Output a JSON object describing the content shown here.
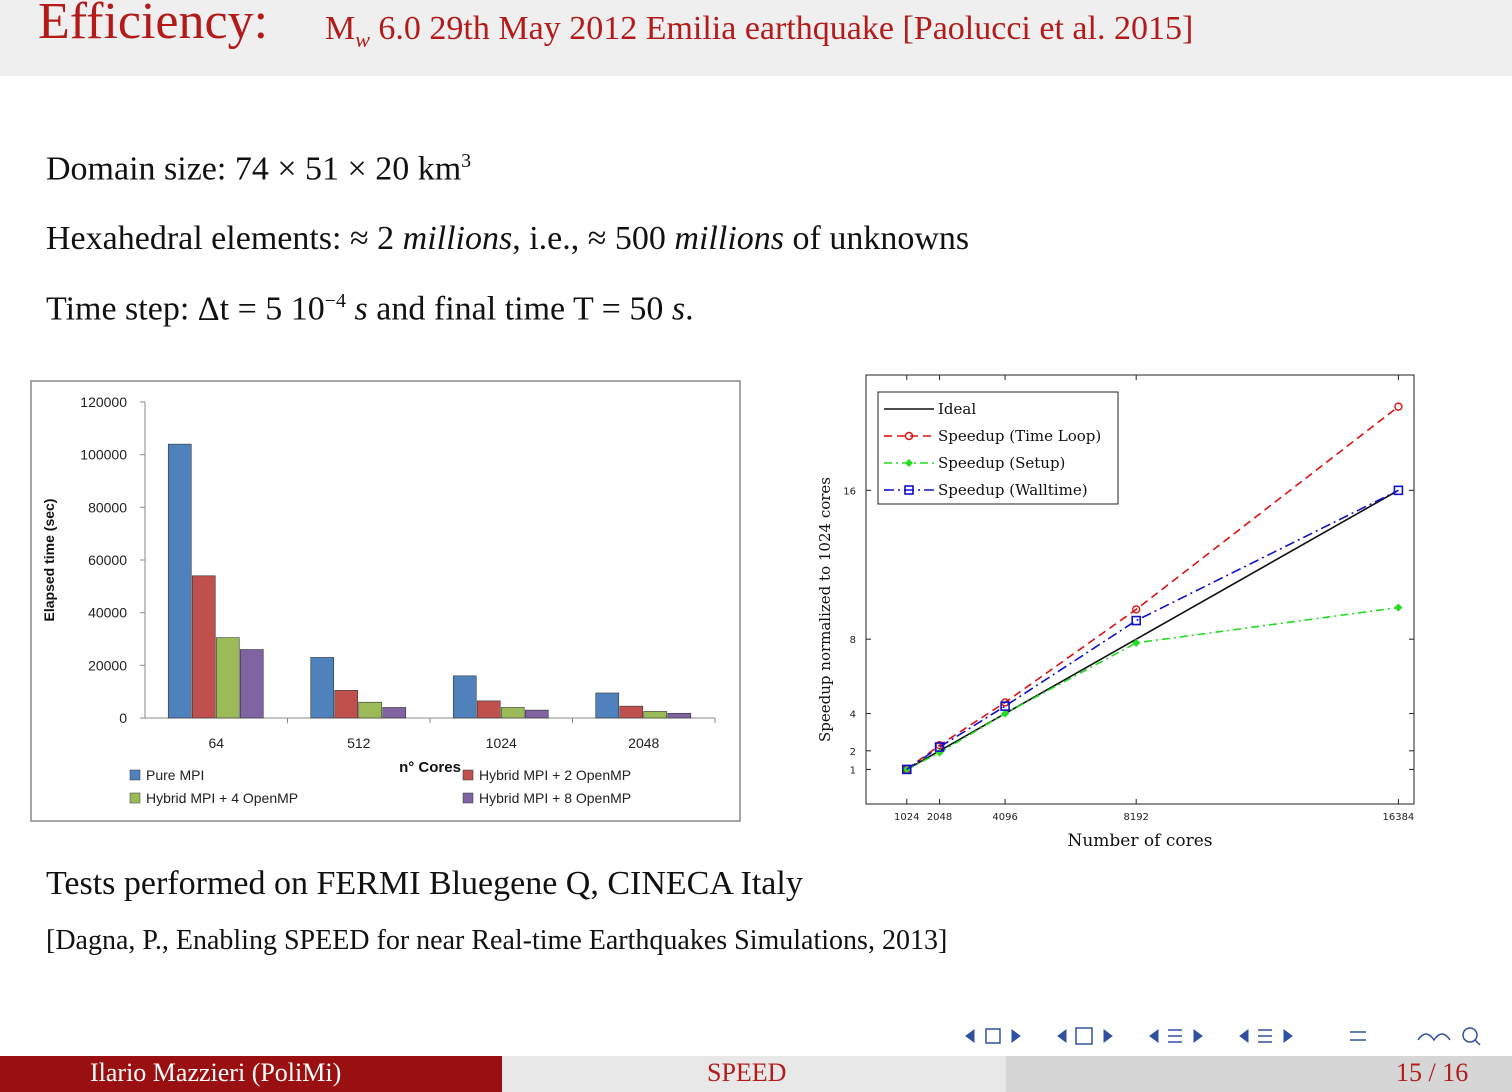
{
  "title": {
    "main": "Efficiency:",
    "sub": "M_w 6.0 29th May 2012 Emilia earthquake [Paolucci et al. 2015]"
  },
  "body": {
    "domain_label": "Domain size:",
    "domain_value": "74 × 51 × 20 km",
    "domain_exp": "3",
    "hexa_label": "Hexahedral elements: ≈ 2 ",
    "hexa_m1": "millions",
    "hexa_mid": ", i.e., ≈ 500 ",
    "hexa_m2": "millions",
    "hexa_end": " of unknowns",
    "time_label": "Time step: Δt = 5 10",
    "time_exp": "−4",
    "time_s1": "s",
    "time_mid": " and final time T = 50 ",
    "time_s2": "s",
    "time_end": ".",
    "tests": "Tests performed on FERMI Bluegene Q, CINECA Italy",
    "citation": "[Dagna, P., Enabling SPEED for near Real-time Earthquakes Simulations, 2013]"
  },
  "footer": {
    "author": "Ilario Mazzieri  (PoliMi)",
    "center": "SPEED",
    "page": "15 / 16"
  },
  "nav_icons": [
    "nav-frame-left",
    "nav-frame-right",
    "nav-subsection-left",
    "nav-subsection-right",
    "nav-section-left",
    "nav-section-right",
    "nav-align",
    "nav-search"
  ],
  "colors": {
    "title": "#b31b1b",
    "footer_left": "#9a1010",
    "pure_mpi": "#4f81bd",
    "hybrid2": "#c0504d",
    "hybrid4": "#9bbb59",
    "hybrid8": "#8064a2"
  },
  "chart_data": [
    {
      "type": "bar",
      "xlabel": "n° Cores",
      "ylabel": "Elapsed time (sec)",
      "categories": [
        "64",
        "512",
        "1024",
        "2048"
      ],
      "ylim": [
        0,
        120000
      ],
      "yticks": [
        "0",
        "20000",
        "40000",
        "60000",
        "80000",
        "100000",
        "120000"
      ],
      "series": [
        {
          "name": "Pure MPI",
          "values": [
            104000,
            23000,
            16000,
            9500
          ]
        },
        {
          "name": "Hybrid MPI + 2 OpenMP",
          "values": [
            54000,
            10500,
            6500,
            4500
          ]
        },
        {
          "name": "Hybrid MPI + 4 OpenMP",
          "values": [
            30500,
            6000,
            4000,
            2500
          ]
        },
        {
          "name": "Hybrid MPI + 8 OpenMP",
          "values": [
            26000,
            4000,
            3000,
            1800
          ]
        }
      ],
      "legend": "bottom",
      "grid": false
    },
    {
      "type": "line",
      "xlabel": "Number of cores",
      "ylabel": "Speedup normalized to 1024 cores",
      "x": [
        1024,
        2048,
        4096,
        8192,
        16384
      ],
      "xticks": [
        "1024",
        "2048",
        "4096",
        "8192",
        "16384"
      ],
      "yticks": [
        "1",
        "2",
        "4",
        "8",
        "16"
      ],
      "series": [
        {
          "name": "Ideal",
          "values": [
            1,
            2,
            4,
            8,
            16
          ]
        },
        {
          "name": "Speedup (Time Loop)",
          "values": [
            1,
            2.3,
            4.6,
            9.6,
            20.5
          ]
        },
        {
          "name": "Speedup (Setup)",
          "values": [
            1,
            1.9,
            4.0,
            7.8,
            9.7
          ]
        },
        {
          "name": "Speedup (Walltime)",
          "values": [
            1,
            2.2,
            4.4,
            9.0,
            16.0
          ]
        }
      ],
      "legend": "top-left",
      "grid": false
    }
  ]
}
